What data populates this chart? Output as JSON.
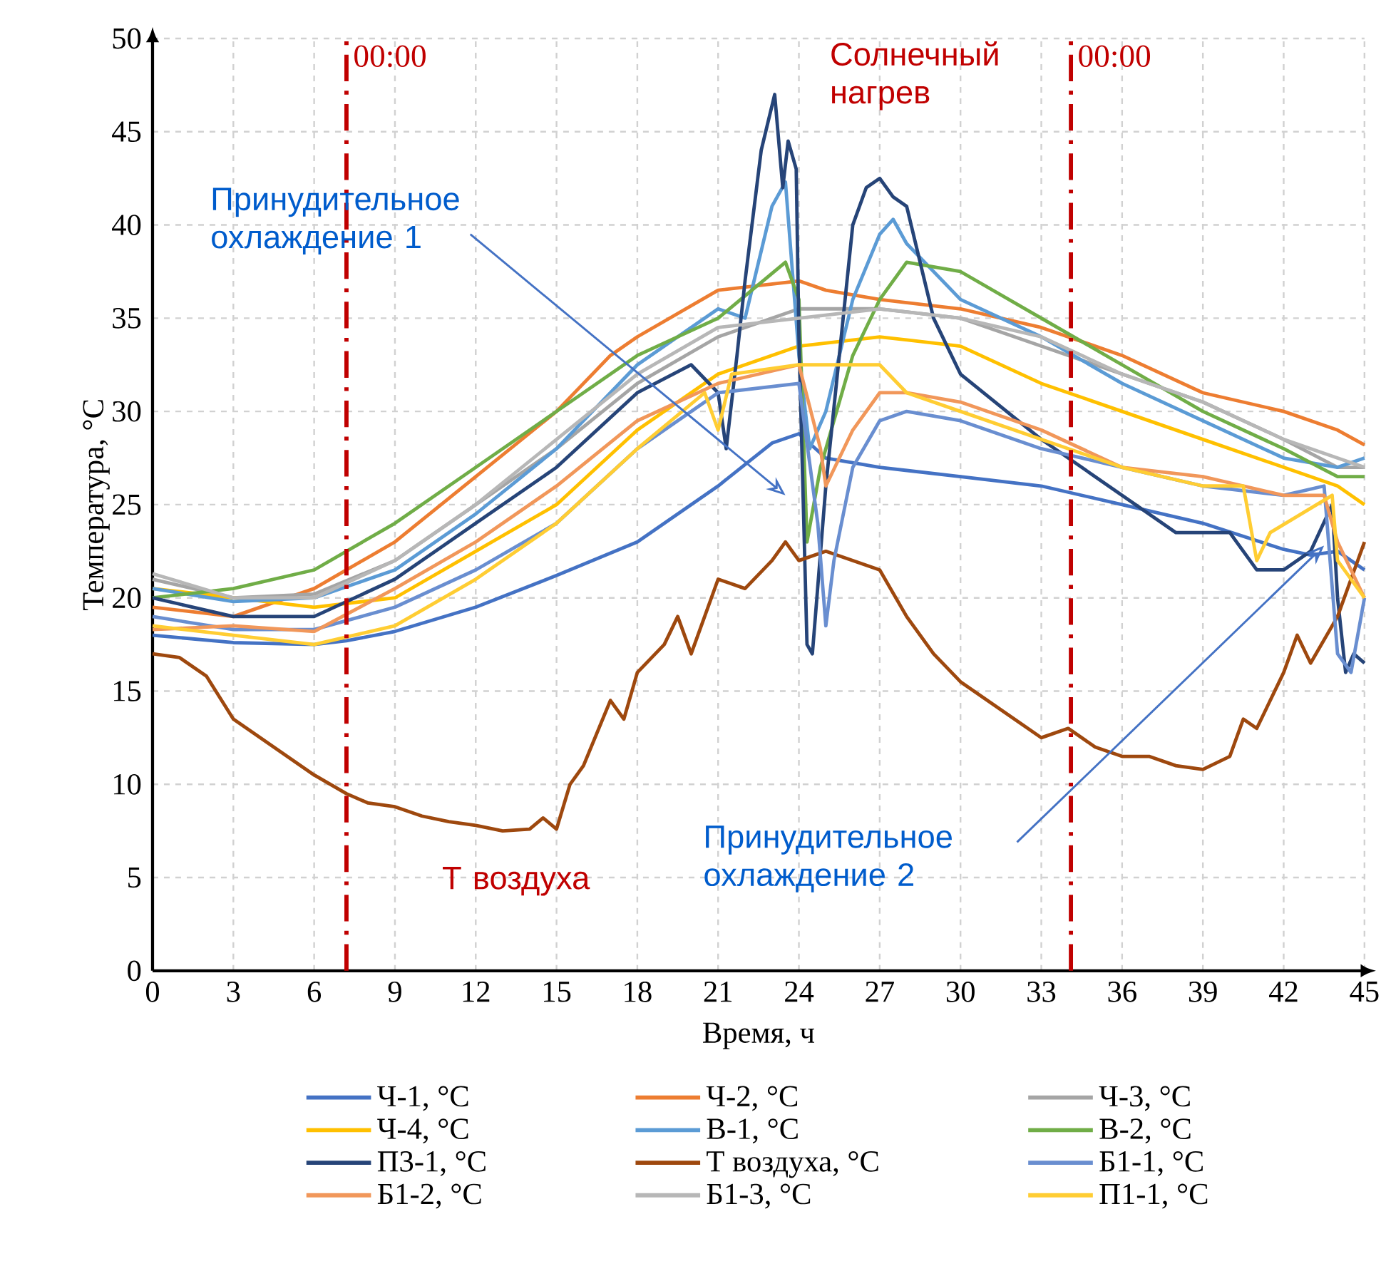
{
  "chart_data": {
    "type": "line",
    "xlabel": "Время, ч",
    "ylabel": "Температура, °C",
    "xlim": [
      0,
      45
    ],
    "ylim": [
      0,
      50
    ],
    "xticks": [
      0,
      3,
      6,
      9,
      12,
      15,
      18,
      21,
      24,
      27,
      30,
      33,
      36,
      39,
      42,
      45
    ],
    "yticks": [
      0,
      5,
      10,
      15,
      20,
      25,
      30,
      35,
      40,
      45,
      50
    ],
    "grid": true,
    "legend": "bottom",
    "line_style": "solid",
    "marker": "none",
    "ref_lines": [
      {
        "axis": "x",
        "value": 7.2,
        "color": "#c00000",
        "line_style": "dashdot"
      },
      {
        "axis": "x",
        "value": 34.1,
        "color": "#c00000",
        "line_style": "dashdot"
      }
    ],
    "annotations": [
      "00:00",
      "00:00",
      "Солнечный нагрев",
      "Т воздуха",
      "Принудительное охлаждение 1",
      "Принудительное охлаждение 2"
    ],
    "series": [
      {
        "name": "Ч-1, °C",
        "color": "#4472c4",
        "x": [
          0,
          3,
          6,
          7.2,
          9,
          12,
          15,
          18,
          21,
          23,
          24,
          25,
          27,
          30,
          33,
          36,
          39,
          42,
          43,
          44,
          45
        ],
        "values": [
          18,
          17.6,
          17.5,
          17.7,
          18.2,
          19.5,
          21.2,
          23,
          26,
          28.3,
          28.8,
          27.5,
          27,
          26.5,
          26,
          25,
          24,
          22.6,
          22.3,
          22.5,
          21.5
        ]
      },
      {
        "name": "Ч-2, °C",
        "color": "#ed7d31",
        "x": [
          0,
          3,
          6,
          9,
          12,
          15,
          17,
          18,
          21,
          24,
          25,
          27,
          30,
          33,
          36,
          39,
          42,
          44,
          45
        ],
        "values": [
          19.5,
          19,
          20.5,
          23,
          26.5,
          30,
          33,
          34,
          36.5,
          37,
          36.5,
          36,
          35.5,
          34.5,
          33,
          31,
          30,
          29,
          28.2
        ]
      },
      {
        "name": "Ч-3, °C",
        "color": "#a5a5a5",
        "x": [
          0,
          3,
          6,
          9,
          12,
          15,
          18,
          21,
          24,
          27,
          30,
          33,
          36,
          39,
          42,
          44,
          45
        ],
        "values": [
          21,
          20,
          20.2,
          22,
          25,
          28,
          31.5,
          34,
          35.5,
          35.5,
          35,
          33.5,
          32,
          30.5,
          28.5,
          27,
          27
        ]
      },
      {
        "name": "Ч-4, °C",
        "color": "#ffc000",
        "x": [
          0,
          3,
          6,
          9,
          12,
          15,
          18,
          21,
          24,
          27,
          30,
          33,
          36,
          39,
          42,
          44,
          45
        ],
        "values": [
          20.5,
          20,
          19.5,
          20,
          22.5,
          25,
          29,
          32,
          33.5,
          34,
          33.5,
          31.5,
          30,
          28.5,
          27,
          26,
          25
        ]
      },
      {
        "name": "В-1, °C",
        "color": "#5b9bd5",
        "x": [
          0,
          3,
          6,
          9,
          12,
          15,
          18,
          21,
          22,
          23,
          23.5,
          24,
          24.4,
          25,
          26,
          27,
          27.5,
          28,
          30,
          33,
          36,
          39,
          42,
          44,
          45
        ],
        "values": [
          20.5,
          19.8,
          20,
          21.5,
          24.5,
          28,
          32.5,
          35.5,
          35,
          41,
          42.3,
          33,
          28,
          30,
          36,
          39.5,
          40.3,
          39,
          36,
          34,
          31.5,
          29.5,
          27.5,
          27,
          27.5
        ]
      },
      {
        "name": "В-2, °C",
        "color": "#70ad47",
        "x": [
          0,
          3,
          6,
          9,
          12,
          15,
          18,
          21,
          23.5,
          24,
          24.3,
          24.8,
          26,
          27,
          28,
          30,
          33,
          36,
          39,
          42,
          44,
          45
        ],
        "values": [
          20,
          20.5,
          21.5,
          24,
          27,
          30,
          33,
          35,
          38,
          36,
          23,
          27,
          33,
          36,
          38,
          37.5,
          35,
          32.5,
          30,
          28,
          26.5,
          26.5
        ]
      },
      {
        "name": "П3-1, °C",
        "color": "#264478",
        "x": [
          0,
          3,
          6,
          9,
          12,
          15,
          18,
          20,
          21,
          21.3,
          21.7,
          22,
          22.6,
          23.1,
          23.4,
          23.6,
          23.9,
          24,
          24.3,
          24.5,
          25,
          25.5,
          26,
          26.5,
          27,
          27.5,
          28,
          29,
          30,
          33,
          35,
          38,
          40,
          41,
          42,
          43,
          43.8,
          44,
          44.3,
          44.6,
          45
        ],
        "values": [
          20,
          19,
          19,
          21,
          24,
          27,
          31,
          32.5,
          31,
          28,
          33,
          37,
          44,
          47,
          42,
          44.5,
          43,
          34,
          17.5,
          17,
          26,
          33,
          40,
          42,
          42.5,
          41.5,
          41,
          35,
          32,
          28.5,
          26.5,
          23.5,
          23.5,
          21.5,
          21.5,
          22.5,
          25,
          20,
          16,
          17,
          16.5
        ]
      },
      {
        "name": "Т воздуха, °C",
        "color": "#9e480e",
        "x": [
          0,
          1,
          2,
          3,
          4,
          5,
          6,
          7.2,
          8,
          9,
          10,
          11,
          12,
          13,
          14,
          14.5,
          15,
          15.5,
          16,
          17,
          17.5,
          18,
          19,
          19.5,
          20,
          21,
          22,
          23,
          23.5,
          24,
          25,
          26,
          27,
          28,
          29,
          30,
          31,
          32,
          33,
          34,
          35,
          36,
          37,
          38,
          39,
          40,
          40.5,
          41,
          42,
          42.5,
          43,
          44,
          44.5,
          45
        ],
        "values": [
          17,
          16.8,
          15.8,
          13.5,
          12.5,
          11.5,
          10.5,
          9.5,
          9,
          8.8,
          8.3,
          8,
          7.8,
          7.5,
          7.6,
          8.2,
          7.6,
          10,
          11,
          14.5,
          13.5,
          16,
          17.5,
          19,
          17,
          21,
          20.5,
          22,
          23,
          22,
          22.5,
          22,
          21.5,
          19,
          17,
          15.5,
          14.5,
          13.5,
          12.5,
          13,
          12,
          11.5,
          11.5,
          11,
          10.8,
          11.5,
          13.5,
          13,
          16,
          18,
          16.5,
          19,
          21,
          23
        ]
      },
      {
        "name": "Б1-1, °C",
        "color": "#698ed0",
        "x": [
          0,
          3,
          6,
          9,
          12,
          15,
          18,
          21,
          24,
          24.7,
          25,
          25.3,
          26,
          27,
          28,
          30,
          33,
          36,
          39,
          42,
          43.5,
          44,
          44.5,
          45
        ],
        "values": [
          19,
          18.3,
          18.3,
          19.5,
          21.5,
          24,
          28,
          31,
          31.5,
          24,
          18.5,
          22,
          27,
          29.5,
          30,
          29.5,
          28,
          27,
          26,
          25.5,
          26,
          17,
          16,
          20
        ]
      },
      {
        "name": "Б1-2, °C",
        "color": "#f1975a",
        "x": [
          0,
          3,
          6,
          9,
          12,
          15,
          18,
          21,
          24,
          24.8,
          25,
          26,
          27,
          28,
          30,
          33,
          36,
          39,
          42,
          43.5,
          44,
          45
        ],
        "values": [
          18.3,
          18.5,
          18.2,
          20.5,
          23,
          26,
          29.5,
          31.5,
          32.5,
          28,
          26,
          29,
          31,
          31,
          30.5,
          29,
          27,
          26.5,
          25.5,
          25.5,
          23,
          20
        ]
      },
      {
        "name": "Б1-3, °C",
        "color": "#b7b7b7",
        "x": [
          0,
          3,
          6,
          9,
          12,
          15,
          18,
          21,
          24,
          27,
          30,
          33,
          36,
          39,
          42,
          44,
          45
        ],
        "values": [
          21.3,
          20,
          20,
          22,
          25,
          28.5,
          32,
          34.5,
          35,
          35.5,
          35,
          34,
          32,
          30.5,
          28.5,
          27.5,
          27
        ]
      },
      {
        "name": "П1-1, °C",
        "color": "#ffcd33",
        "x": [
          0,
          3,
          6,
          9,
          12,
          15,
          18,
          20.5,
          21,
          21.5,
          24,
          27,
          28,
          30,
          33,
          36,
          39,
          40.5,
          41,
          41.5,
          43.8,
          44,
          45
        ],
        "values": [
          18.5,
          18,
          17.5,
          18.5,
          21,
          24,
          28,
          31,
          29,
          32,
          32.5,
          32.5,
          31,
          30,
          28.5,
          27,
          26,
          26,
          22,
          23.5,
          25.5,
          22,
          20
        ]
      }
    ]
  }
}
